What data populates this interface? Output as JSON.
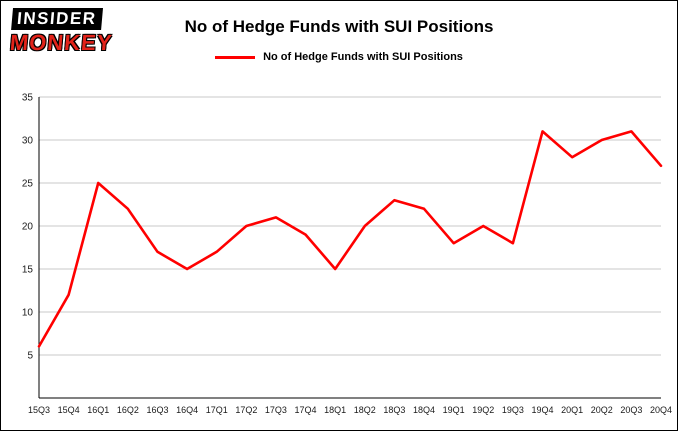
{
  "logo": {
    "line1": "INSIDER",
    "line2": "MONKEY"
  },
  "header": {
    "title": "No of Hedge Funds with SUI Positions"
  },
  "legend": {
    "label": "No of Hedge Funds with SUI Positions"
  },
  "colors": {
    "line": "#ff0000",
    "logo_red": "#e2231a",
    "grid": "#c9c9c9",
    "axis": "#000000",
    "tick_text": "#1a1a1a"
  },
  "chart_data": {
    "type": "line",
    "title": "No of Hedge Funds with SUI Positions",
    "categories": [
      "15Q3",
      "15Q4",
      "16Q1",
      "16Q2",
      "16Q3",
      "16Q4",
      "17Q1",
      "17Q2",
      "17Q3",
      "17Q4",
      "18Q1",
      "18Q2",
      "18Q3",
      "18Q4",
      "19Q1",
      "19Q2",
      "19Q3",
      "19Q4",
      "20Q1",
      "20Q2",
      "20Q3",
      "20Q4"
    ],
    "values": [
      6,
      12,
      25,
      22,
      17,
      15,
      17,
      20,
      21,
      19,
      15,
      20,
      23,
      22,
      18,
      20,
      18,
      31,
      28,
      30,
      31,
      27
    ],
    "xlabel": "",
    "ylabel": "",
    "ylim": [
      0,
      35
    ],
    "yticks": [
      5,
      10,
      15,
      20,
      25,
      30,
      35
    ],
    "grid": true,
    "legend_position": "top",
    "line_color": "#ff0000"
  }
}
